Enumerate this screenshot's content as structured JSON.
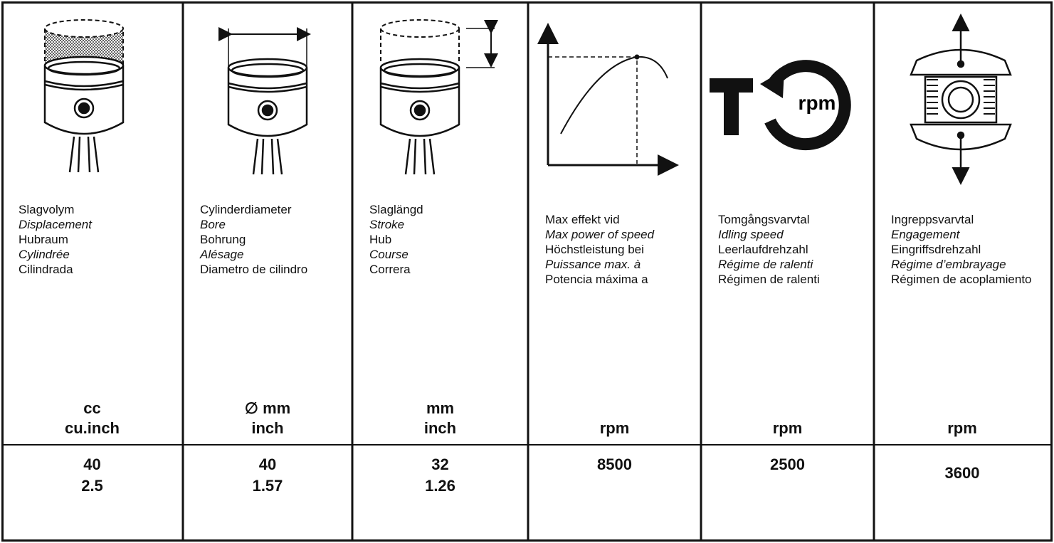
{
  "columns": [
    {
      "label": [
        "Slagvolym",
        "Displacement",
        "Hubraum",
        "Cylindrée",
        "Cilindrada"
      ],
      "units": [
        "cc",
        "cu.inch"
      ],
      "values": [
        40,
        2.5
      ]
    },
    {
      "label": [
        "Cylinderdiameter",
        "Bore",
        "Bohrung",
        "Alésage",
        "Diametro de cilindro"
      ],
      "units": [
        "∅ mm",
        "inch"
      ],
      "values": [
        40,
        1.57
      ]
    },
    {
      "label": [
        "Slaglängd",
        "Stroke",
        "Hub",
        "Course",
        "Correra"
      ],
      "units": [
        "mm",
        "inch"
      ],
      "values": [
        32,
        1.26
      ]
    },
    {
      "label": [
        "Max effekt vid",
        "Max power of speed",
        "Höchstleistung bei",
        "Puissance max. à",
        "Potencia máxima a"
      ],
      "units": [
        "rpm"
      ],
      "values": [
        8500
      ]
    },
    {
      "icon_text": "rpm",
      "label": [
        "Tomgångsvarvtal",
        "Idling speed",
        "Leerlaufdrehzahl",
        "Régime de ralenti",
        "Régimen de ralenti"
      ],
      "units": [
        "rpm"
      ],
      "values": [
        2500
      ]
    },
    {
      "label": [
        "Ingreppsvarvtal",
        "Engagement",
        "Eingriffsdrehzahl",
        "Régime d’embrayage",
        "Régimen de acoplamiento"
      ],
      "units": [
        "rpm"
      ],
      "values": [
        3600
      ]
    }
  ]
}
